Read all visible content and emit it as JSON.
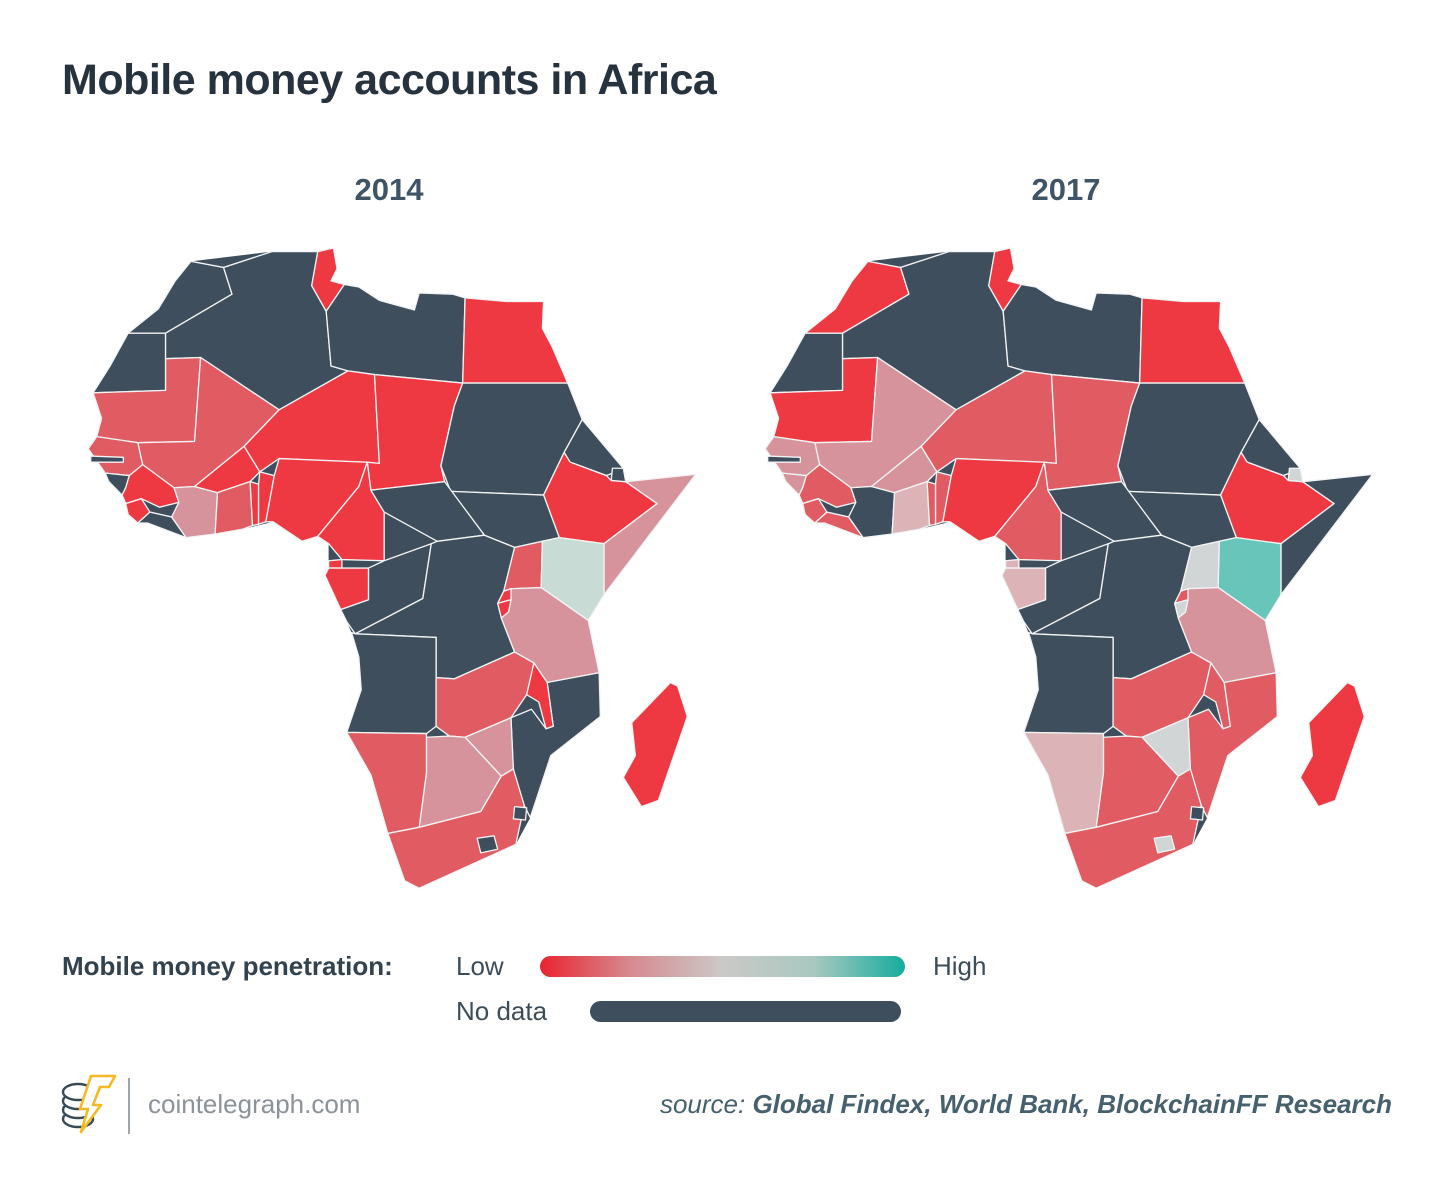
{
  "title": "Mobile money accounts in Africa",
  "maps": [
    {
      "year": "2014"
    },
    {
      "year": "2017"
    }
  ],
  "legend": {
    "label": "Mobile money penetration:",
    "low": "Low",
    "high": "High",
    "no_data": "No data",
    "gradient_stops": [
      "#e92430",
      "#d58b90",
      "#cbc9c7",
      "#a9c8c0",
      "#14ad9e"
    ]
  },
  "palette": {
    "nodata": "#3e4e5c",
    "red": "#ee3942",
    "salmon": "#e05b62",
    "dusty": "#d7939b",
    "pale": "#dcb4b7",
    "gray": "#d2d5d6",
    "sage": "#c9dbd5",
    "teal": "#68c5b9",
    "border": "#f2f4f5"
  },
  "footer": {
    "site": "cointelegraph.com",
    "source_prefix": "source: ",
    "source_text": "Global Findex, World Bank, BlockchainFF Research",
    "logo_colors": {
      "coin": "#374a57",
      "bolt": "#f6b922"
    }
  },
  "map_data": {
    "type": "choropleth",
    "region": "Africa",
    "years": [
      "2014",
      "2017"
    ],
    "level_scale": [
      "red = lowest",
      "salmon = low",
      "dusty = mid-low",
      "pale = mid",
      "gray = mid",
      "sage = mid-high",
      "teal = high",
      "nodata = no data"
    ],
    "countries": [
      {
        "id": "morocco",
        "name": "Morocco",
        "levels": {
          "2014": "nodata",
          "2017": "red"
        }
      },
      {
        "id": "wsahara",
        "name": "Western Sahara",
        "levels": {
          "2014": "nodata",
          "2017": "nodata"
        }
      },
      {
        "id": "algeria",
        "name": "Algeria",
        "levels": {
          "2014": "nodata",
          "2017": "nodata"
        }
      },
      {
        "id": "tunisia",
        "name": "Tunisia",
        "levels": {
          "2014": "red",
          "2017": "red"
        }
      },
      {
        "id": "libya",
        "name": "Libya",
        "levels": {
          "2014": "nodata",
          "2017": "nodata"
        }
      },
      {
        "id": "egypt",
        "name": "Egypt",
        "levels": {
          "2014": "red",
          "2017": "red"
        }
      },
      {
        "id": "mauritania",
        "name": "Mauritania",
        "levels": {
          "2014": "salmon",
          "2017": "red"
        }
      },
      {
        "id": "mali",
        "name": "Mali",
        "levels": {
          "2014": "salmon",
          "2017": "dusty"
        }
      },
      {
        "id": "niger",
        "name": "Niger",
        "levels": {
          "2014": "red",
          "2017": "salmon"
        }
      },
      {
        "id": "chad",
        "name": "Chad",
        "levels": {
          "2014": "red",
          "2017": "salmon"
        }
      },
      {
        "id": "sudan",
        "name": "Sudan",
        "levels": {
          "2014": "nodata",
          "2017": "nodata"
        }
      },
      {
        "id": "eritrea",
        "name": "Eritrea",
        "levels": {
          "2014": "nodata",
          "2017": "nodata"
        }
      },
      {
        "id": "ethiopia",
        "name": "Ethiopia",
        "levels": {
          "2014": "red",
          "2017": "red"
        }
      },
      {
        "id": "somalia",
        "name": "Somalia",
        "levels": {
          "2014": "dusty",
          "2017": "nodata"
        }
      },
      {
        "id": "djibouti",
        "name": "Djibouti",
        "levels": {
          "2014": "nodata",
          "2017": "gray"
        }
      },
      {
        "id": "ssudan",
        "name": "South Sudan",
        "levels": {
          "2014": "nodata",
          "2017": "nodata"
        }
      },
      {
        "id": "senegal",
        "name": "Senegal",
        "levels": {
          "2014": "salmon",
          "2017": "dusty"
        }
      },
      {
        "id": "gbissau",
        "name": "Guinea-Bissau",
        "levels": {
          "2014": "nodata",
          "2017": "dusty"
        }
      },
      {
        "id": "guinea",
        "name": "Guinea",
        "levels": {
          "2014": "red",
          "2017": "salmon"
        }
      },
      {
        "id": "sleone",
        "name": "Sierra Leone",
        "levels": {
          "2014": "red",
          "2017": "salmon"
        }
      },
      {
        "id": "liberia",
        "name": "Liberia",
        "levels": {
          "2014": "nodata",
          "2017": "salmon"
        }
      },
      {
        "id": "civoire",
        "name": "Cote d'Ivoire",
        "levels": {
          "2014": "dusty",
          "2017": "nodata"
        }
      },
      {
        "id": "bfaso",
        "name": "Burkina Faso",
        "levels": {
          "2014": "red",
          "2017": "dusty"
        }
      },
      {
        "id": "ghana",
        "name": "Ghana",
        "levels": {
          "2014": "salmon",
          "2017": "pale"
        }
      },
      {
        "id": "togo",
        "name": "Togo",
        "levels": {
          "2014": "red",
          "2017": "salmon"
        }
      },
      {
        "id": "benin",
        "name": "Benin",
        "levels": {
          "2014": "red",
          "2017": "salmon"
        }
      },
      {
        "id": "nigeria",
        "name": "Nigeria",
        "levels": {
          "2014": "red",
          "2017": "red"
        }
      },
      {
        "id": "cameroon",
        "name": "Cameroon",
        "levels": {
          "2014": "red",
          "2017": "salmon"
        }
      },
      {
        "id": "car",
        "name": "Central African Republic",
        "levels": {
          "2014": "nodata",
          "2017": "nodata"
        }
      },
      {
        "id": "congo",
        "name": "Republic of the Congo",
        "levels": {
          "2014": "nodata",
          "2017": "nodata"
        }
      },
      {
        "id": "drc",
        "name": "DR Congo",
        "levels": {
          "2014": "nodata",
          "2017": "nodata"
        }
      },
      {
        "id": "eqguinea",
        "name": "Equatorial Guinea",
        "levels": {
          "2014": "red",
          "2017": "pale"
        }
      },
      {
        "id": "gabon",
        "name": "Gabon",
        "levels": {
          "2014": "red",
          "2017": "pale"
        }
      },
      {
        "id": "uganda",
        "name": "Uganda",
        "levels": {
          "2014": "salmon",
          "2017": "gray"
        }
      },
      {
        "id": "kenya",
        "name": "Kenya",
        "levels": {
          "2014": "sage",
          "2017": "teal"
        }
      },
      {
        "id": "tanzania",
        "name": "Tanzania",
        "levels": {
          "2014": "dusty",
          "2017": "dusty"
        }
      },
      {
        "id": "rwanda",
        "name": "Rwanda",
        "levels": {
          "2014": "red",
          "2017": "salmon"
        }
      },
      {
        "id": "burundi",
        "name": "Burundi",
        "levels": {
          "2014": "red",
          "2017": "gray"
        }
      },
      {
        "id": "angola",
        "name": "Angola",
        "levels": {
          "2014": "nodata",
          "2017": "nodata"
        }
      },
      {
        "id": "zambia",
        "name": "Zambia",
        "levels": {
          "2014": "salmon",
          "2017": "salmon"
        }
      },
      {
        "id": "mozambique",
        "name": "Mozambique",
        "levels": {
          "2014": "nodata",
          "2017": "salmon"
        }
      },
      {
        "id": "malawi",
        "name": "Malawi",
        "levels": {
          "2014": "red",
          "2017": "salmon"
        }
      },
      {
        "id": "zimbabwe",
        "name": "Zimbabwe",
        "levels": {
          "2014": "dusty",
          "2017": "gray"
        }
      },
      {
        "id": "botswana",
        "name": "Botswana",
        "levels": {
          "2014": "dusty",
          "2017": "salmon"
        }
      },
      {
        "id": "namibia",
        "name": "Namibia",
        "levels": {
          "2014": "salmon",
          "2017": "pale"
        }
      },
      {
        "id": "southafrica",
        "name": "South Africa",
        "levels": {
          "2014": "salmon",
          "2017": "salmon"
        }
      },
      {
        "id": "lesotho",
        "name": "Lesotho",
        "levels": {
          "2014": "nodata",
          "2017": "gray"
        }
      },
      {
        "id": "swaziland",
        "name": "Eswatini",
        "levels": {
          "2014": "nodata",
          "2017": "nodata"
        }
      },
      {
        "id": "madagascar",
        "name": "Madagascar",
        "levels": {
          "2014": "red",
          "2017": "red"
        }
      },
      {
        "id": "gambia",
        "name": "Gambia",
        "levels": {
          "2014": "nodata",
          "2017": "nodata"
        }
      }
    ]
  }
}
